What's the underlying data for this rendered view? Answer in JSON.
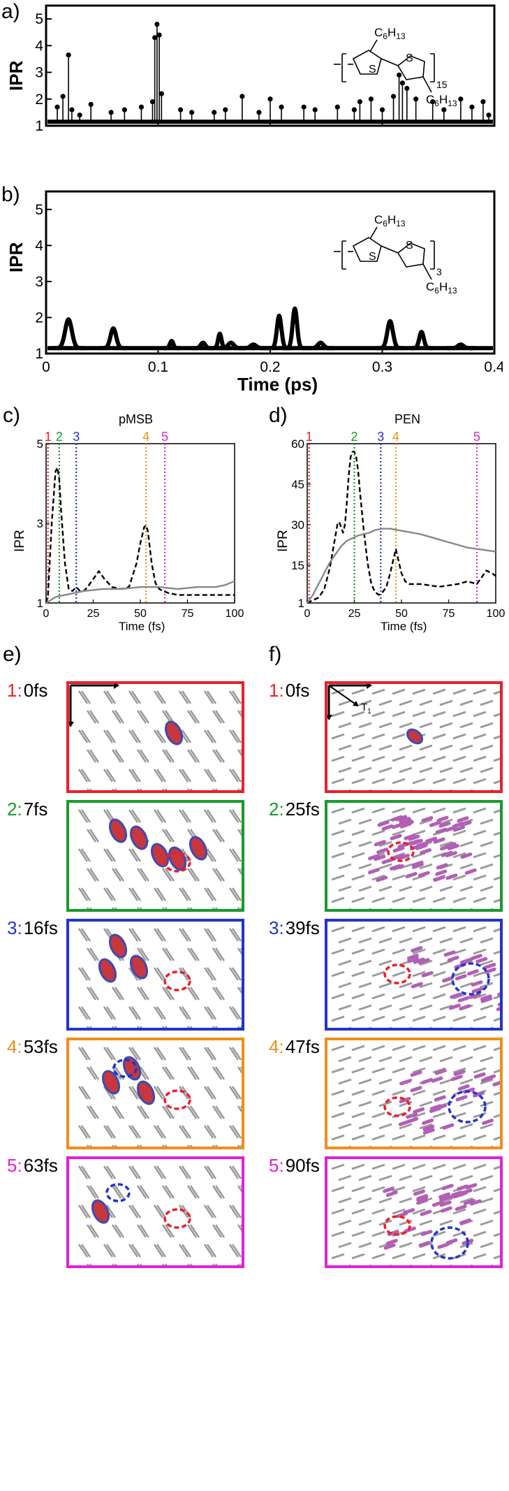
{
  "panels": {
    "a": {
      "letter": "a)",
      "ylabel": "IPR",
      "polymer_repeat": "15"
    },
    "b": {
      "letter": "b)",
      "ylabel": "IPR",
      "polymer_repeat": "3",
      "xlabel": "Time (ps)"
    },
    "c": {
      "letter": "c)",
      "title": "pMSB",
      "ylabel": "IPR",
      "xlabel": "Time (fs)"
    },
    "d": {
      "letter": "d)",
      "title": "PEN",
      "ylabel": "IPR",
      "xlabel": "Time (fs)"
    },
    "e": {
      "letter": "e)"
    },
    "f": {
      "letter": "f)",
      "axis_label": "T",
      "axis_sub": "1"
    }
  },
  "molecule": {
    "sub_a": "C",
    "sub_b": "6",
    "sub_c": "H",
    "sub_d": "13",
    "atom": "S"
  },
  "chart_data": [
    {
      "id": "a",
      "type": "line",
      "xlabel": "",
      "ylabel": "IPR",
      "xlim": [
        0,
        0.4
      ],
      "ylim": [
        1,
        5.5
      ],
      "yticks": [
        "1",
        "2",
        "3",
        "4",
        "5"
      ],
      "baseline": 1.15,
      "spikes": [
        [
          0.01,
          1.7
        ],
        [
          0.015,
          2.1
        ],
        [
          0.02,
          3.65
        ],
        [
          0.023,
          1.6
        ],
        [
          0.03,
          1.4
        ],
        [
          0.04,
          1.8
        ],
        [
          0.058,
          1.5
        ],
        [
          0.07,
          1.6
        ],
        [
          0.085,
          1.7
        ],
        [
          0.095,
          1.9
        ],
        [
          0.097,
          4.3
        ],
        [
          0.099,
          4.8
        ],
        [
          0.101,
          4.4
        ],
        [
          0.103,
          2.2
        ],
        [
          0.12,
          1.6
        ],
        [
          0.13,
          1.5
        ],
        [
          0.15,
          1.5
        ],
        [
          0.16,
          1.6
        ],
        [
          0.175,
          2.1
        ],
        [
          0.19,
          1.5
        ],
        [
          0.2,
          2.0
        ],
        [
          0.21,
          1.7
        ],
        [
          0.23,
          1.7
        ],
        [
          0.24,
          1.6
        ],
        [
          0.26,
          1.7
        ],
        [
          0.275,
          1.6
        ],
        [
          0.28,
          1.9
        ],
        [
          0.29,
          2.0
        ],
        [
          0.3,
          1.6
        ],
        [
          0.31,
          2.1
        ],
        [
          0.315,
          2.9
        ],
        [
          0.318,
          2.6
        ],
        [
          0.322,
          2.4
        ],
        [
          0.33,
          2.0
        ],
        [
          0.345,
          1.9
        ],
        [
          0.355,
          1.6
        ],
        [
          0.37,
          2.0
        ],
        [
          0.38,
          1.7
        ],
        [
          0.39,
          1.9
        ],
        [
          0.395,
          1.4
        ]
      ]
    },
    {
      "id": "b",
      "type": "line",
      "xlabel": "Time (ps)",
      "ylabel": "IPR",
      "xlim": [
        0,
        0.4
      ],
      "ylim": [
        1,
        5.5
      ],
      "xticks": [
        "0",
        "0.1",
        "0.2",
        "0.3",
        "0.4"
      ],
      "yticks": [
        "1",
        "2",
        "3",
        "4",
        "5"
      ],
      "baseline": 1.15,
      "peaks": [
        [
          0.02,
          1.95,
          0.006
        ],
        [
          0.06,
          1.7,
          0.005
        ],
        [
          0.112,
          1.35,
          0.003
        ],
        [
          0.14,
          1.3,
          0.004
        ],
        [
          0.155,
          1.55,
          0.003
        ],
        [
          0.165,
          1.3,
          0.005
        ],
        [
          0.185,
          1.25,
          0.005
        ],
        [
          0.208,
          2.05,
          0.004
        ],
        [
          0.222,
          2.25,
          0.004
        ],
        [
          0.245,
          1.3,
          0.005
        ],
        [
          0.307,
          1.9,
          0.005
        ],
        [
          0.335,
          1.6,
          0.004
        ],
        [
          0.37,
          1.25,
          0.005
        ]
      ]
    },
    {
      "id": "c",
      "type": "line",
      "title": "pMSB",
      "xlabel": "Time (fs)",
      "ylabel": "IPR",
      "xlim": [
        0,
        100
      ],
      "ylim": [
        1,
        5
      ],
      "xticks": [
        "0",
        "25",
        "50",
        "75",
        "100"
      ],
      "yticks": [
        "1",
        "3",
        "5"
      ],
      "series": [
        {
          "name": "dashed",
          "style": "dashed",
          "color": "#000000",
          "x": [
            0,
            1,
            3,
            5,
            6,
            7,
            8,
            10,
            12,
            14,
            16,
            18,
            20,
            22,
            25,
            28,
            31,
            35,
            40,
            44,
            48,
            50,
            52,
            53,
            54,
            56,
            58,
            60,
            62,
            65,
            70,
            80,
            90,
            100
          ],
          "y": [
            1,
            1.2,
            3.0,
            4.3,
            4.4,
            4.1,
            3.3,
            2.0,
            1.35,
            1.3,
            1.4,
            1.3,
            1.3,
            1.4,
            1.6,
            1.8,
            1.6,
            1.4,
            1.35,
            1.4,
            2.0,
            2.5,
            2.9,
            2.95,
            2.8,
            2.0,
            1.5,
            1.35,
            1.3,
            1.25,
            1.2,
            1.2,
            1.2,
            1.2
          ]
        },
        {
          "name": "solid",
          "style": "solid",
          "color": "#888888",
          "x": [
            0,
            5,
            10,
            15,
            20,
            30,
            40,
            50,
            60,
            70,
            80,
            90,
            95,
            100
          ],
          "y": [
            1,
            1.15,
            1.2,
            1.25,
            1.3,
            1.35,
            1.35,
            1.4,
            1.4,
            1.35,
            1.4,
            1.4,
            1.45,
            1.55
          ]
        }
      ],
      "markers": [
        {
          "label": "1",
          "x": 1,
          "color": "#e8212b"
        },
        {
          "label": "2",
          "x": 7,
          "color": "#1a9a2c"
        },
        {
          "label": "3",
          "x": 16,
          "color": "#2233cc"
        },
        {
          "label": "4",
          "x": 53,
          "color": "#f18d1a"
        },
        {
          "label": "5",
          "x": 63,
          "color": "#e021d8"
        }
      ]
    },
    {
      "id": "d",
      "type": "line",
      "title": "PEN",
      "xlabel": "Time (fs)",
      "ylabel": "IPR",
      "xlim": [
        0,
        100
      ],
      "ylim": [
        1,
        60
      ],
      "xticks": [
        "0",
        "25",
        "50",
        "75",
        "100"
      ],
      "yticks": [
        "1",
        "15",
        "30",
        "45",
        "60"
      ],
      "series": [
        {
          "name": "dashed",
          "style": "dashed",
          "color": "#000000",
          "x": [
            0,
            3,
            6,
            9,
            12,
            14,
            16,
            17,
            18,
            19,
            20,
            21,
            22,
            23,
            24,
            25,
            26,
            27,
            28,
            30,
            32,
            34,
            36,
            38,
            40,
            42,
            44,
            46,
            47,
            48,
            50,
            52,
            54,
            56,
            60,
            70,
            80,
            85,
            90,
            93,
            95,
            98,
            100
          ],
          "y": [
            1,
            2,
            3,
            6,
            14,
            22,
            30,
            31,
            29,
            27,
            30,
            38,
            48,
            55,
            57,
            57,
            55,
            50,
            42,
            28,
            16,
            8,
            5,
            4,
            5,
            7,
            12,
            18,
            21,
            18,
            12,
            9,
            8,
            8,
            8,
            7,
            8,
            9,
            8,
            11,
            13,
            12,
            11
          ]
        },
        {
          "name": "solid",
          "style": "solid",
          "color": "#888888",
          "x": [
            0,
            3,
            6,
            9,
            12,
            15,
            18,
            21,
            24,
            27,
            30,
            33,
            36,
            40,
            44,
            48,
            52,
            56,
            60,
            65,
            70,
            75,
            80,
            85,
            90,
            95,
            100
          ],
          "y": [
            1,
            4,
            8,
            12,
            16,
            19,
            22,
            24,
            25,
            26,
            26.5,
            27,
            28,
            28.5,
            28.5,
            28,
            27.5,
            27,
            26.5,
            25.5,
            24.5,
            23.5,
            22.5,
            21.5,
            21,
            20.5,
            20
          ]
        }
      ],
      "markers": [
        {
          "label": "1",
          "x": 1,
          "color": "#e8212b"
        },
        {
          "label": "2",
          "x": 25,
          "color": "#1a9a2c"
        },
        {
          "label": "3",
          "x": 39,
          "color": "#2233cc"
        },
        {
          "label": "4",
          "x": 47,
          "color": "#f18d1a"
        },
        {
          "label": "5",
          "x": 90,
          "color": "#e021d8"
        }
      ]
    }
  ],
  "snapshots_e": [
    {
      "num": "1:",
      "time": "0",
      "unit": "fs",
      "color": "#e8212b"
    },
    {
      "num": "2:",
      "time": "7",
      "unit": "fs",
      "color": "#1a9a2c"
    },
    {
      "num": "3:",
      "time": "16",
      "unit": "fs",
      "color": "#2233cc"
    },
    {
      "num": "4:",
      "time": "53",
      "unit": "fs",
      "color": "#f18d1a"
    },
    {
      "num": "5:",
      "time": "63",
      "unit": "fs",
      "color": "#e021d8"
    }
  ],
  "snapshots_f": [
    {
      "num": "1:",
      "time": "0",
      "unit": "fs",
      "color": "#e8212b"
    },
    {
      "num": "2:",
      "time": "25",
      "unit": "fs",
      "color": "#1a9a2c"
    },
    {
      "num": "3:",
      "time": "39",
      "unit": "fs",
      "color": "#2233cc"
    },
    {
      "num": "4:",
      "time": "47",
      "unit": "fs",
      "color": "#f18d1a"
    },
    {
      "num": "5:",
      "time": "90",
      "unit": "fs",
      "color": "#e021d8"
    }
  ]
}
